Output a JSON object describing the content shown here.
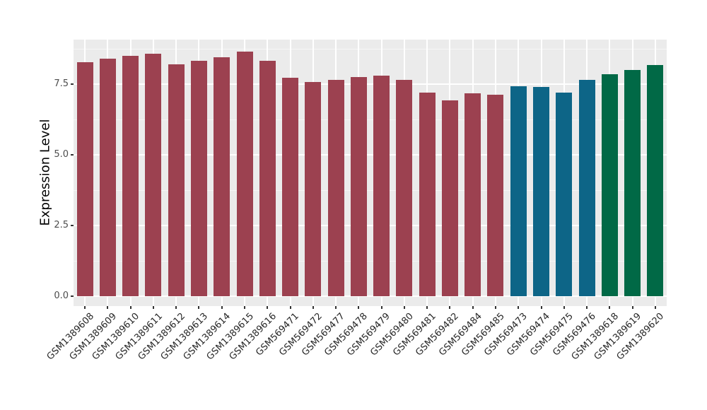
{
  "figure": {
    "background": "#FFFFFF",
    "panel_background": "#EBEBEB",
    "grid_major_color": "#FFFFFF",
    "grid_minor_color": "#F4F4F4",
    "axis_text_color": "#333333",
    "tick_mark_color": "#333333"
  },
  "chart_data": {
    "type": "bar",
    "title": "",
    "xlabel": "",
    "ylabel": "Expression Level",
    "ylim": [
      0,
      9.08
    ],
    "yticks": [
      0,
      2.5,
      5,
      7.5
    ],
    "ytick_labels": [
      "0.0",
      "2.5",
      "5.0",
      "7.5"
    ],
    "yminor": [
      1.25,
      3.75,
      6.25,
      8.75
    ],
    "grid": "on",
    "legend_position": "none",
    "x_tick_angle_deg": 45,
    "categories": [
      "GSM1389608",
      "GSM1389609",
      "GSM1389610",
      "GSM1389611",
      "GSM1389612",
      "GSM1389613",
      "GSM1389614",
      "GSM1389615",
      "GSM1389616",
      "GSM569471",
      "GSM569472",
      "GSM569477",
      "GSM569478",
      "GSM569479",
      "GSM569480",
      "GSM569481",
      "GSM569482",
      "GSM569484",
      "GSM569485",
      "GSM569473",
      "GSM569474",
      "GSM569475",
      "GSM569476",
      "GSM1389618",
      "GSM1389619",
      "GSM1389620"
    ],
    "values": [
      8.28,
      8.39,
      8.49,
      8.58,
      8.2,
      8.33,
      8.44,
      8.66,
      8.33,
      7.73,
      7.58,
      7.64,
      7.75,
      7.81,
      7.64,
      7.21,
      6.93,
      7.17,
      7.13,
      7.43,
      7.4,
      7.2,
      7.66,
      7.85,
      8.0,
      8.18
    ],
    "bar_colors": [
      "#9C4150",
      "#9C4150",
      "#9C4150",
      "#9C4150",
      "#9C4150",
      "#9C4150",
      "#9C4150",
      "#9C4150",
      "#9C4150",
      "#9C4150",
      "#9C4150",
      "#9C4150",
      "#9C4150",
      "#9C4150",
      "#9C4150",
      "#9C4150",
      "#9C4150",
      "#9C4150",
      "#9C4150",
      "#0D6587",
      "#0D6587",
      "#0D6587",
      "#0D6587",
      "#016946",
      "#016946",
      "#016946"
    ],
    "palette": {
      "maroon": "#9C4150",
      "teal": "#0D6587",
      "green": "#016946"
    }
  }
}
